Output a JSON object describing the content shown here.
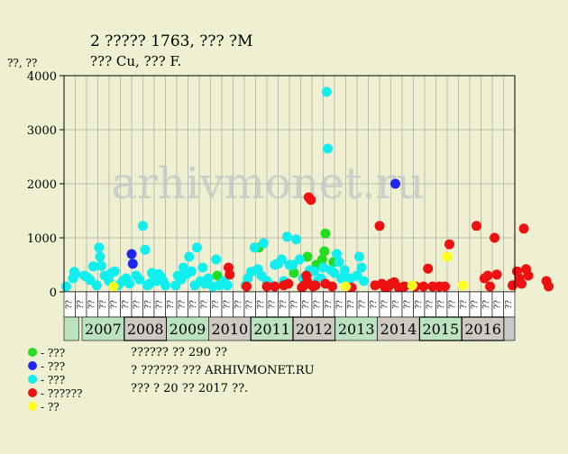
{
  "title_line1": "2 ????? 1763, ??? ?M",
  "title_line2": "??? Cu, ??? F.",
  "y_unit": "??, ??",
  "watermark": "arhivmonet.ru",
  "chart_data": {
    "type": "scatter",
    "title": "2 ????? 1763, ??? ?M",
    "subtitle": "??? Cu, ??? F.",
    "ylabel": "??, ??",
    "ylim": [
      0,
      4000
    ],
    "y_ticks": [
      0,
      1000,
      2000,
      3000,
      4000
    ],
    "grid": true,
    "x_period_labels": [
      "??",
      "??",
      "??",
      "??",
      "??",
      "??",
      "??",
      "??",
      "??",
      "??",
      "??",
      "??",
      "??",
      "??",
      "??",
      "??",
      "??",
      "??",
      "??",
      "??",
      "??",
      "??",
      "??",
      "??",
      "??",
      "??",
      "??",
      "??",
      "??",
      "??",
      "??",
      "??",
      "??",
      "??",
      "??",
      "??",
      "??",
      "??",
      "??",
      "??"
    ],
    "years": [
      "2007",
      "2008",
      "2009",
      "2010",
      "2011",
      "2012",
      "2013",
      "2014",
      "2015",
      "2016"
    ],
    "year_colors": [
      "#bbe3c0",
      "#cec9c3",
      "#bbe3c0",
      "#cec9c3",
      "#bbe3c0",
      "#cec9c3",
      "#bbe3c0",
      "#cec9c3",
      "#bbe3c0",
      "#cec9c3"
    ],
    "year_highlight": [
      false,
      true,
      false,
      false,
      true,
      true,
      false,
      false,
      true,
      true
    ],
    "series": [
      {
        "name": "- ???",
        "color": "#22dd22",
        "points": [
          [
            13.6,
            300
          ],
          [
            17.3,
            820
          ],
          [
            20.4,
            350
          ],
          [
            21.6,
            650
          ],
          [
            22.4,
            500
          ],
          [
            22.9,
            600
          ],
          [
            23.1,
            750
          ],
          [
            23.2,
            1080
          ],
          [
            23.9,
            550
          ],
          [
            24.2,
            600
          ]
        ]
      },
      {
        "name": "- ???",
        "color": "#1e26f0",
        "points": [
          [
            6.0,
            700
          ],
          [
            6.1,
            520
          ],
          [
            29.4,
            2000
          ]
        ]
      },
      {
        "name": "- ???",
        "color": "#11eeee",
        "points": [
          [
            0.2,
            100
          ],
          [
            0.8,
            250
          ],
          [
            0.9,
            370
          ],
          [
            1.0,
            330
          ],
          [
            1.8,
            300
          ],
          [
            2.0,
            280
          ],
          [
            2.3,
            220
          ],
          [
            2.6,
            470
          ],
          [
            2.9,
            120
          ],
          [
            3.1,
            820
          ],
          [
            3.2,
            650
          ],
          [
            3.3,
            480
          ],
          [
            3.6,
            300
          ],
          [
            4.0,
            200
          ],
          [
            4.2,
            350
          ],
          [
            4.5,
            380
          ],
          [
            4.8,
            120
          ],
          [
            5.2,
            200
          ],
          [
            5.5,
            250
          ],
          [
            5.8,
            150
          ],
          [
            6.4,
            300
          ],
          [
            6.7,
            230
          ],
          [
            7.0,
            1220
          ],
          [
            7.2,
            780
          ],
          [
            7.4,
            120
          ],
          [
            7.6,
            150
          ],
          [
            7.8,
            350
          ],
          [
            8.0,
            250
          ],
          [
            8.2,
            200
          ],
          [
            8.4,
            330
          ],
          [
            8.6,
            280
          ],
          [
            8.8,
            200
          ],
          [
            9.0,
            120
          ],
          [
            9.9,
            120
          ],
          [
            10.1,
            300
          ],
          [
            10.4,
            230
          ],
          [
            10.6,
            450
          ],
          [
            10.9,
            330
          ],
          [
            11.1,
            650
          ],
          [
            11.3,
            380
          ],
          [
            11.6,
            120
          ],
          [
            11.8,
            820
          ],
          [
            12.1,
            200
          ],
          [
            12.3,
            450
          ],
          [
            12.5,
            150
          ],
          [
            12.8,
            250
          ],
          [
            13.2,
            100
          ],
          [
            13.5,
            600
          ],
          [
            13.8,
            120
          ],
          [
            14.2,
            200
          ],
          [
            14.5,
            120
          ],
          [
            16.1,
            120
          ],
          [
            16.3,
            250
          ],
          [
            16.6,
            370
          ],
          [
            16.9,
            820
          ],
          [
            17.2,
            420
          ],
          [
            17.5,
            300
          ],
          [
            17.7,
            900
          ],
          [
            18.0,
            200
          ],
          [
            18.3,
            120
          ],
          [
            18.7,
            500
          ],
          [
            19.0,
            520
          ],
          [
            19.3,
            600
          ],
          [
            19.5,
            200
          ],
          [
            19.8,
            1020
          ],
          [
            20.0,
            500
          ],
          [
            20.3,
            500
          ],
          [
            20.6,
            970
          ],
          [
            20.9,
            600
          ],
          [
            21.2,
            250
          ],
          [
            21.5,
            250
          ],
          [
            21.8,
            400
          ],
          [
            22.2,
            380
          ],
          [
            22.5,
            200
          ],
          [
            22.8,
            250
          ],
          [
            23.0,
            450
          ],
          [
            23.3,
            3700
          ],
          [
            23.4,
            2650
          ],
          [
            23.7,
            400
          ],
          [
            24.0,
            350
          ],
          [
            24.2,
            700
          ],
          [
            24.4,
            550
          ],
          [
            24.6,
            250
          ],
          [
            24.9,
            400
          ],
          [
            25.2,
            100
          ],
          [
            25.4,
            250
          ],
          [
            26.0,
            300
          ],
          [
            26.2,
            650
          ],
          [
            26.4,
            450
          ],
          [
            26.6,
            200
          ]
        ]
      },
      {
        "name": "- ??????",
        "color": "#ee1111",
        "points": [
          [
            14.6,
            450
          ],
          [
            14.7,
            320
          ],
          [
            16.2,
            100
          ],
          [
            18.0,
            100
          ],
          [
            18.7,
            100
          ],
          [
            19.5,
            120
          ],
          [
            19.9,
            150
          ],
          [
            21.1,
            80
          ],
          [
            21.3,
            120
          ],
          [
            21.5,
            300
          ],
          [
            21.6,
            180
          ],
          [
            21.7,
            1750
          ],
          [
            21.9,
            1700
          ],
          [
            22.1,
            100
          ],
          [
            22.3,
            120
          ],
          [
            23.2,
            150
          ],
          [
            23.8,
            100
          ],
          [
            25.5,
            80
          ],
          [
            27.6,
            120
          ],
          [
            28.0,
            1220
          ],
          [
            28.2,
            150
          ],
          [
            28.5,
            80
          ],
          [
            28.8,
            100
          ],
          [
            29.0,
            150
          ],
          [
            29.3,
            180
          ],
          [
            29.7,
            80
          ],
          [
            30.2,
            100
          ],
          [
            31.2,
            100
          ],
          [
            31.9,
            100
          ],
          [
            32.3,
            430
          ],
          [
            32.7,
            100
          ],
          [
            33.3,
            100
          ],
          [
            33.8,
            100
          ],
          [
            34.2,
            880
          ],
          [
            36.6,
            1220
          ],
          [
            37.3,
            250
          ],
          [
            37.6,
            300
          ],
          [
            37.8,
            100
          ],
          [
            38.2,
            1000
          ],
          [
            38.4,
            320
          ],
          [
            39.8,
            120
          ],
          [
            40.2,
            380
          ],
          [
            40.4,
            250
          ],
          [
            40.6,
            150
          ],
          [
            40.8,
            1170
          ],
          [
            41.0,
            420
          ],
          [
            41.2,
            300
          ],
          [
            42.8,
            200
          ],
          [
            43.0,
            100
          ]
        ]
      },
      {
        "name": "- ??",
        "color": "#ffff1e",
        "points": [
          [
            4.4,
            100
          ],
          [
            25.0,
            100
          ],
          [
            30.9,
            120
          ],
          [
            34.0,
            650
          ],
          [
            35.4,
            120
          ]
        ]
      }
    ]
  },
  "legend": [
    {
      "label": "- ???",
      "color": "#22dd22"
    },
    {
      "label": "- ???",
      "color": "#1e26f0"
    },
    {
      "label": "- ???",
      "color": "#11eeee"
    },
    {
      "label": "- ??????",
      "color": "#ee1111"
    },
    {
      "label": "- ??",
      "color": "#ffff1e"
    }
  ],
  "notes": [
    "?????? ?? 290 ??",
    "? ?????? ??? ARHIVMONET.RU",
    "??? ? 20 ?? 2017 ??."
  ]
}
